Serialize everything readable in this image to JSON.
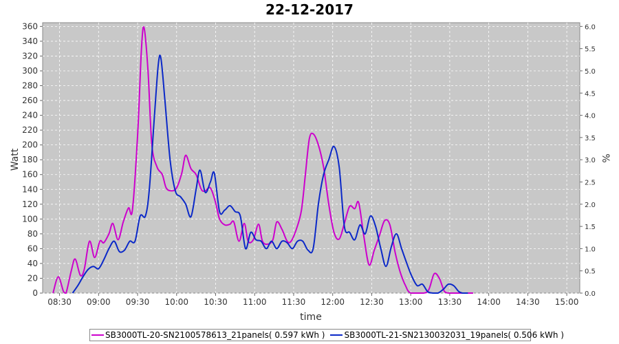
{
  "chart_data": {
    "type": "line",
    "title": "22-12-2017",
    "xlabel": "time",
    "ylabel": "Watt",
    "y2label": "%",
    "ylim": [
      0,
      365
    ],
    "y2lim": [
      0,
      6.083
    ],
    "y_ticks": [
      0,
      20,
      40,
      60,
      80,
      100,
      120,
      140,
      160,
      180,
      200,
      220,
      240,
      260,
      280,
      300,
      320,
      340,
      360
    ],
    "y_tick_labels": [
      "0",
      "20",
      "40",
      "60",
      "80",
      "100",
      "120",
      "140",
      "160",
      "180",
      "200",
      "220",
      "240",
      "260",
      "280",
      "300",
      "320",
      "340",
      "360"
    ],
    "y2_ticks": [
      0,
      0.5,
      1,
      1.5,
      2,
      2.5,
      3,
      3.5,
      4,
      4.5,
      5,
      5.5,
      6
    ],
    "y2_tick_labels": [
      "0.0",
      "0.5",
      "1.0",
      "1.5",
      "2.0",
      "2.5",
      "3.0",
      "3.5",
      "4.0",
      "4.5",
      "5.0",
      "5.5",
      "6.0"
    ],
    "x_ticks": [
      "08:30",
      "09:00",
      "09:30",
      "10:00",
      "10:30",
      "11:00",
      "11:30",
      "12:00",
      "12:30",
      "13:00",
      "13:30",
      "14:00",
      "14:30",
      "15:00"
    ],
    "x_range": [
      "08:17",
      "15:10"
    ],
    "grid": true,
    "background": "#c8c8c8",
    "legend_position": "bottom",
    "series": [
      {
        "name": "SB3000TL-20-SN2100578613_21panels( 0.597 kWh )",
        "color": "#cc00cc",
        "points": [
          [
            "08:25",
            0
          ],
          [
            "08:29",
            22
          ],
          [
            "08:33",
            2
          ],
          [
            "08:35",
            0
          ],
          [
            "08:39",
            30
          ],
          [
            "08:42",
            46
          ],
          [
            "08:46",
            24
          ],
          [
            "08:49",
            32
          ],
          [
            "08:53",
            70
          ],
          [
            "08:57",
            48
          ],
          [
            "09:01",
            70
          ],
          [
            "09:04",
            68
          ],
          [
            "09:08",
            80
          ],
          [
            "09:11",
            94
          ],
          [
            "09:15",
            72
          ],
          [
            "09:19",
            96
          ],
          [
            "09:23",
            115
          ],
          [
            "09:26",
            112
          ],
          [
            "09:30",
            212
          ],
          [
            "09:33",
            330
          ],
          [
            "09:35",
            358
          ],
          [
            "09:38",
            300
          ],
          [
            "09:41",
            200
          ],
          [
            "09:45",
            170
          ],
          [
            "09:49",
            160
          ],
          [
            "09:52",
            142
          ],
          [
            "09:56",
            138
          ],
          [
            "10:00",
            142
          ],
          [
            "10:04",
            162
          ],
          [
            "10:07",
            186
          ],
          [
            "10:11",
            168
          ],
          [
            "10:15",
            160
          ],
          [
            "10:19",
            140
          ],
          [
            "10:22",
            138
          ],
          [
            "10:26",
            142
          ],
          [
            "10:30",
            122
          ],
          [
            "10:33",
            100
          ],
          [
            "10:37",
            92
          ],
          [
            "10:41",
            93
          ],
          [
            "10:44",
            96
          ],
          [
            "10:48",
            70
          ],
          [
            "10:52",
            94
          ],
          [
            "10:55",
            70
          ],
          [
            "10:59",
            72
          ],
          [
            "11:03",
            93
          ],
          [
            "11:06",
            70
          ],
          [
            "11:10",
            66
          ],
          [
            "11:14",
            72
          ],
          [
            "11:17",
            96
          ],
          [
            "11:21",
            86
          ],
          [
            "11:25",
            70
          ],
          [
            "11:28",
            70
          ],
          [
            "11:32",
            86
          ],
          [
            "11:36",
            112
          ],
          [
            "11:39",
            160
          ],
          [
            "11:42",
            208
          ],
          [
            "11:45",
            215
          ],
          [
            "11:49",
            200
          ],
          [
            "11:53",
            170
          ],
          [
            "11:57",
            120
          ],
          [
            "12:01",
            82
          ],
          [
            "12:05",
            73
          ],
          [
            "12:09",
            94
          ],
          [
            "12:13",
            117
          ],
          [
            "12:17",
            114
          ],
          [
            "12:20",
            122
          ],
          [
            "12:24",
            76
          ],
          [
            "12:28",
            38
          ],
          [
            "12:32",
            58
          ],
          [
            "12:36",
            78
          ],
          [
            "12:40",
            98
          ],
          [
            "12:44",
            92
          ],
          [
            "12:48",
            55
          ],
          [
            "12:52",
            28
          ],
          [
            "12:56",
            10
          ],
          [
            "13:00",
            0
          ],
          [
            "13:10",
            0
          ],
          [
            "13:14",
            5
          ],
          [
            "13:18",
            26
          ],
          [
            "13:22",
            20
          ],
          [
            "13:26",
            2
          ],
          [
            "13:30",
            0
          ],
          [
            "13:40",
            0
          ],
          [
            "13:48",
            0
          ]
        ]
      },
      {
        "name": "SB3000TL-21-SN2130032031_19panels( 0.506 kWh )",
        "color": "#0a28c8",
        "points": [
          [
            "08:40",
            0
          ],
          [
            "08:44",
            10
          ],
          [
            "08:48",
            22
          ],
          [
            "08:52",
            32
          ],
          [
            "08:56",
            36
          ],
          [
            "09:00",
            33
          ],
          [
            "09:04",
            45
          ],
          [
            "09:08",
            60
          ],
          [
            "09:12",
            70
          ],
          [
            "09:16",
            56
          ],
          [
            "09:20",
            58
          ],
          [
            "09:24",
            70
          ],
          [
            "09:28",
            70
          ],
          [
            "09:32",
            104
          ],
          [
            "09:36",
            104
          ],
          [
            "09:39",
            140
          ],
          [
            "09:43",
            240
          ],
          [
            "09:46",
            310
          ],
          [
            "09:48",
            316
          ],
          [
            "09:51",
            260
          ],
          [
            "09:55",
            180
          ],
          [
            "09:59",
            138
          ],
          [
            "10:03",
            130
          ],
          [
            "10:07",
            120
          ],
          [
            "10:11",
            103
          ],
          [
            "10:15",
            140
          ],
          [
            "10:18",
            166
          ],
          [
            "10:22",
            136
          ],
          [
            "10:26",
            150
          ],
          [
            "10:29",
            162
          ],
          [
            "10:33",
            110
          ],
          [
            "10:37",
            112
          ],
          [
            "10:41",
            118
          ],
          [
            "10:45",
            110
          ],
          [
            "10:49",
            104
          ],
          [
            "10:53",
            60
          ],
          [
            "10:57",
            82
          ],
          [
            "11:01",
            72
          ],
          [
            "11:05",
            70
          ],
          [
            "11:09",
            60
          ],
          [
            "11:13",
            70
          ],
          [
            "11:17",
            60
          ],
          [
            "11:21",
            70
          ],
          [
            "11:25",
            68
          ],
          [
            "11:29",
            60
          ],
          [
            "11:33",
            70
          ],
          [
            "11:37",
            70
          ],
          [
            "11:41",
            58
          ],
          [
            "11:45",
            60
          ],
          [
            "11:49",
            120
          ],
          [
            "11:53",
            160
          ],
          [
            "11:57",
            180
          ],
          [
            "12:01",
            198
          ],
          [
            "12:05",
            170
          ],
          [
            "12:09",
            90
          ],
          [
            "12:13",
            82
          ],
          [
            "12:17",
            72
          ],
          [
            "12:21",
            92
          ],
          [
            "12:25",
            80
          ],
          [
            "12:29",
            104
          ],
          [
            "12:33",
            90
          ],
          [
            "12:37",
            60
          ],
          [
            "12:41",
            36
          ],
          [
            "12:45",
            62
          ],
          [
            "12:49",
            80
          ],
          [
            "12:53",
            60
          ],
          [
            "12:57",
            40
          ],
          [
            "13:01",
            22
          ],
          [
            "13:05",
            10
          ],
          [
            "13:09",
            12
          ],
          [
            "13:13",
            2
          ],
          [
            "13:17",
            0
          ],
          [
            "13:21",
            0
          ],
          [
            "13:25",
            5
          ],
          [
            "13:29",
            12
          ],
          [
            "13:33",
            10
          ],
          [
            "13:37",
            2
          ],
          [
            "13:40",
            0
          ],
          [
            "13:44",
            0
          ]
        ]
      }
    ]
  }
}
